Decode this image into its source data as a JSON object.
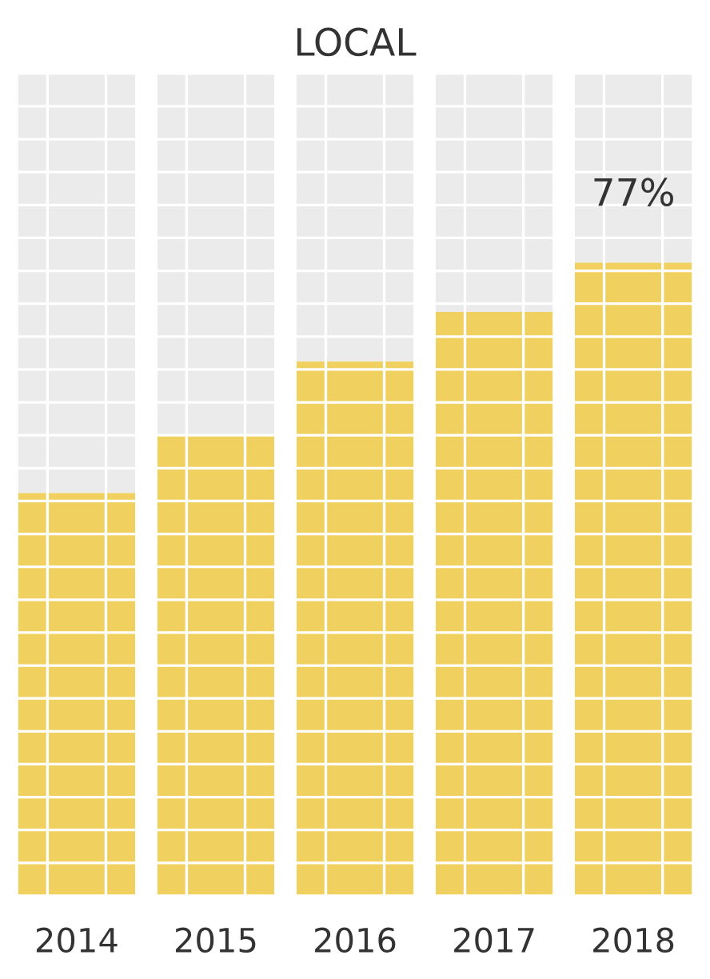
{
  "chart_data": {
    "type": "bar",
    "title": "LOCAL",
    "categories": [
      "2014",
      "2015",
      "2016",
      "2017",
      "2018"
    ],
    "stacked": true,
    "series": [
      {
        "color": "#f0d160",
        "values": [
          49,
          56,
          65,
          71,
          77
        ],
        "value_labels": [
          null,
          null,
          null,
          null,
          "77%"
        ]
      },
      {
        "color": "#ebebeb",
        "values": [
          51,
          44,
          35,
          29,
          23
        ]
      }
    ],
    "ylim": [
      0,
      100
    ],
    "yticks": [
      {
        "value": 0,
        "label": null
      },
      {
        "value": 4,
        "label": null
      },
      {
        "value": 8,
        "label": null
      },
      {
        "value": 12,
        "label": null
      },
      {
        "value": 16,
        "label": null
      },
      {
        "value": 20,
        "label": null
      },
      {
        "value": 24,
        "label": null
      },
      {
        "value": 28,
        "label": null
      },
      {
        "value": 32,
        "label": null
      },
      {
        "value": 36,
        "label": null
      },
      {
        "value": 40,
        "label": null
      },
      {
        "value": 44,
        "label": null
      },
      {
        "value": 48,
        "label": null
      },
      {
        "value": 52,
        "label": null
      },
      {
        "value": 56,
        "label": null
      },
      {
        "value": 60,
        "label": null
      },
      {
        "value": 64,
        "label": null
      },
      {
        "value": 68,
        "label": null
      },
      {
        "value": 72,
        "label": null
      },
      {
        "value": 76,
        "label": null
      },
      {
        "value": 80,
        "label": null
      },
      {
        "value": 84,
        "label": null
      },
      {
        "value": 88,
        "label": null
      },
      {
        "value": 92,
        "label": null
      },
      {
        "value": 96,
        "label": null
      },
      {
        "value": 100,
        "label": null
      }
    ],
    "tick_labels": "x",
    "grid": true
  }
}
